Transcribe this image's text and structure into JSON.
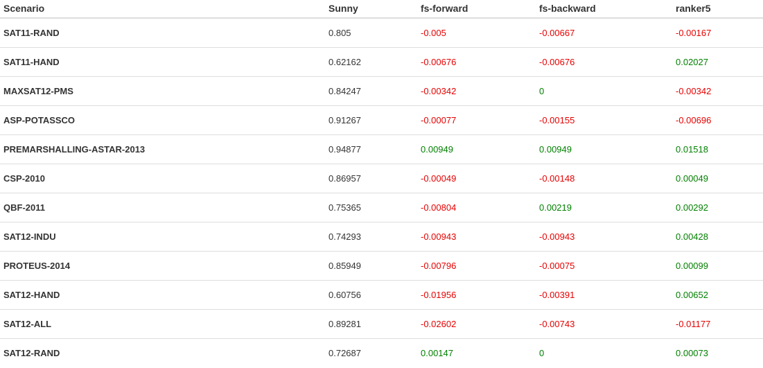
{
  "table": {
    "headers": [
      "Scenario",
      "Sunny",
      "fs-forward",
      "fs-backward",
      "ranker5"
    ],
    "rows": [
      {
        "scenario": "SAT11-RAND",
        "sunny": "0.805",
        "fs_forward": "-0.005",
        "fs_backward": "-0.00667",
        "ranker5": "-0.00167"
      },
      {
        "scenario": "SAT11-HAND",
        "sunny": "0.62162",
        "fs_forward": "-0.00676",
        "fs_backward": "-0.00676",
        "ranker5": "0.02027"
      },
      {
        "scenario": "MAXSAT12-PMS",
        "sunny": "0.84247",
        "fs_forward": "-0.00342",
        "fs_backward": "0",
        "ranker5": "-0.00342"
      },
      {
        "scenario": "ASP-POTASSCO",
        "sunny": "0.91267",
        "fs_forward": "-0.00077",
        "fs_backward": "-0.00155",
        "ranker5": "-0.00696"
      },
      {
        "scenario": "PREMARSHALLING-ASTAR-2013",
        "sunny": "0.94877",
        "fs_forward": "0.00949",
        "fs_backward": "0.00949",
        "ranker5": "0.01518"
      },
      {
        "scenario": "CSP-2010",
        "sunny": "0.86957",
        "fs_forward": "-0.00049",
        "fs_backward": "-0.00148",
        "ranker5": "0.00049"
      },
      {
        "scenario": "QBF-2011",
        "sunny": "0.75365",
        "fs_forward": "-0.00804",
        "fs_backward": "0.00219",
        "ranker5": "0.00292"
      },
      {
        "scenario": "SAT12-INDU",
        "sunny": "0.74293",
        "fs_forward": "-0.00943",
        "fs_backward": "-0.00943",
        "ranker5": "0.00428"
      },
      {
        "scenario": "PROTEUS-2014",
        "sunny": "0.85949",
        "fs_forward": "-0.00796",
        "fs_backward": "-0.00075",
        "ranker5": "0.00099"
      },
      {
        "scenario": "SAT12-HAND",
        "sunny": "0.60756",
        "fs_forward": "-0.01956",
        "fs_backward": "-0.00391",
        "ranker5": "0.00652"
      },
      {
        "scenario": "SAT12-ALL",
        "sunny": "0.89281",
        "fs_forward": "-0.02602",
        "fs_backward": "-0.00743",
        "ranker5": "-0.01177"
      },
      {
        "scenario": "SAT12-RAND",
        "sunny": "0.72687",
        "fs_forward": "0.00147",
        "fs_backward": "0",
        "ranker5": "0.00073"
      }
    ]
  },
  "colors": {
    "negative": "#e60000",
    "positive": "#008000",
    "text": "#333333",
    "border": "#dddddd"
  }
}
